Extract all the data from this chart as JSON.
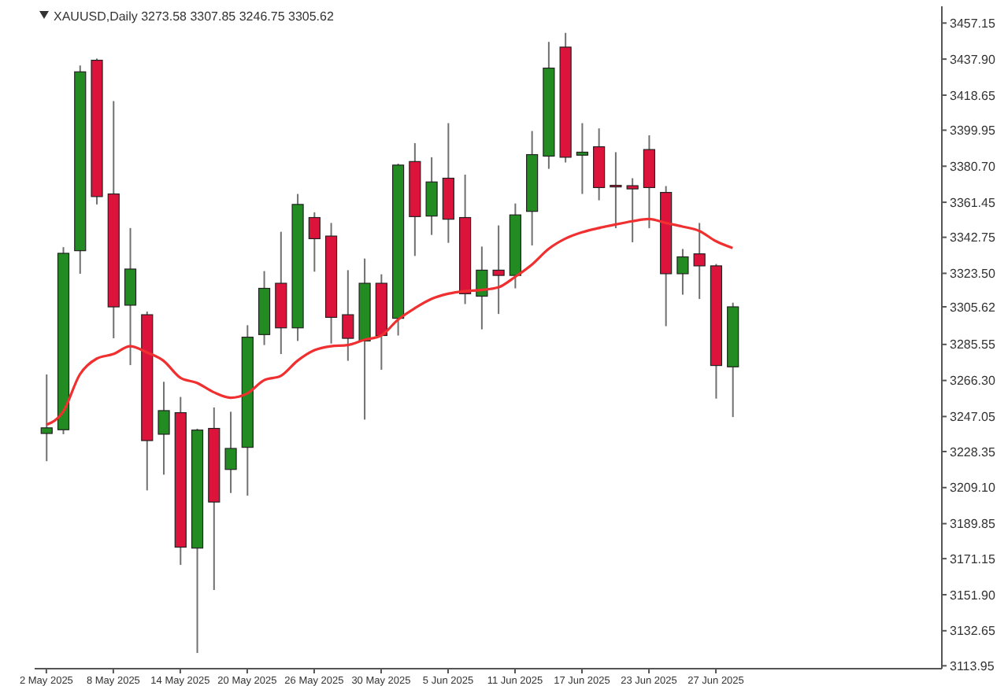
{
  "chart_data": {
    "type": "candlestick",
    "title": "XAUUSD,Daily  3273.58 3307.85 3246.75 3305.62",
    "categories": [
      "2 May 2025",
      null,
      null,
      null,
      "8 May 2025",
      null,
      null,
      null,
      "14 May 2025",
      null,
      null,
      null,
      "20 May 2025",
      null,
      null,
      null,
      "26 May 2025",
      null,
      null,
      null,
      "30 May 2025",
      null,
      null,
      null,
      "5 Jun 2025",
      null,
      null,
      null,
      "11 Jun 2025",
      null,
      null,
      null,
      "17 Jun 2025",
      null,
      null,
      null,
      "23 Jun 2025",
      null,
      null,
      null,
      "27 Jun 2025",
      null
    ],
    "ohlc": [
      [
        3238,
        3269.5,
        3223.2,
        3241
      ],
      [
        3240,
        3337.5,
        3237.6,
        3334.2
      ],
      [
        3335.6,
        3434.5,
        3323.3,
        3431.1
      ],
      [
        3437.3,
        3438.2,
        3360.3,
        3364.5
      ],
      [
        3365.9,
        3415.5,
        3288.8,
        3305.6
      ],
      [
        3306.5,
        3347.7,
        3274.5,
        3325.8
      ],
      [
        3301.4,
        3303.1,
        3207.6,
        3234.2
      ],
      [
        3237.6,
        3265.6,
        3216,
        3250.2
      ],
      [
        3249.1,
        3257.5,
        3167.8,
        3177.3
      ],
      [
        3176.8,
        3240.5,
        3120.8,
        3239.8
      ],
      [
        3240.7,
        3251.9,
        3154.4,
        3201.4
      ],
      [
        3218.8,
        3249.6,
        3206.2,
        3230
      ],
      [
        3230.6,
        3295.8,
        3204.8,
        3289.4
      ],
      [
        3290.8,
        3324.7,
        3285.2,
        3315.5
      ],
      [
        3318.2,
        3345.7,
        3280.4,
        3294.4
      ],
      [
        3294.4,
        3365.9,
        3287.4,
        3360.3
      ],
      [
        3353.3,
        3356.1,
        3324.4,
        3342
      ],
      [
        3343.4,
        3350.4,
        3286,
        3300
      ],
      [
        3301.4,
        3325.2,
        3276.8,
        3288.8
      ],
      [
        3287.4,
        3331.4,
        3245.4,
        3318.2
      ],
      [
        3318.2,
        3323,
        3272,
        3290.3
      ],
      [
        3299.5,
        3382.1,
        3290.3,
        3381.3
      ],
      [
        3383.2,
        3393,
        3332.8,
        3353.8
      ],
      [
        3354.1,
        3385.5,
        3344,
        3372.3
      ],
      [
        3374.3,
        3403.7,
        3339.8,
        3352.4
      ],
      [
        3353.3,
        3376.2,
        3307.1,
        3312.6
      ],
      [
        3311.3,
        3337.8,
        3293.6,
        3325.2
      ],
      [
        3325.2,
        3349.1,
        3301.8,
        3322.4
      ],
      [
        3322.4,
        3360.8,
        3315.5,
        3354.7
      ],
      [
        3356.6,
        3399.5,
        3338.4,
        3386.9
      ],
      [
        3386.1,
        3447.1,
        3379.3,
        3433.1
      ],
      [
        3444.3,
        3451.9,
        3382.7,
        3385.5
      ],
      [
        3386.6,
        3403.7,
        3365.9,
        3388.2
      ],
      [
        3391.1,
        3400.9,
        3362.5,
        3369.3
      ],
      [
        3370.5,
        3388.2,
        3347.6,
        3370.3
      ],
      [
        3370.3,
        3374.3,
        3340.1,
        3368.6
      ],
      [
        3389.6,
        3397.2,
        3347.6,
        3369.3
      ],
      [
        3366.7,
        3370.1,
        3295.3,
        3323.3
      ],
      [
        3323.3,
        3336.5,
        3312.1,
        3332.3
      ],
      [
        3333.9,
        3350.4,
        3309.8,
        3327.5
      ],
      [
        3327.5,
        3328.5,
        3256.6,
        3274.3
      ],
      [
        3273.58,
        3307.85,
        3246.75,
        3305.62
      ]
    ],
    "colors": [
      "#228b22",
      "#228b22",
      "#228b22",
      "#dc143c",
      "#dc143c",
      "#228b22",
      "#dc143c",
      "#228b22",
      "#dc143c",
      "#228b22",
      "#dc143c",
      "#228b22",
      "#228b22",
      "#228b22",
      "#dc143c",
      "#228b22",
      "#dc143c",
      "#dc143c",
      "#dc143c",
      "#228b22",
      "#dc143c",
      "#228b22",
      "#dc143c",
      "#228b22",
      "#dc143c",
      "#dc143c",
      "#228b22",
      "#dc143c",
      "#228b22",
      "#228b22",
      "#228b22",
      "#dc143c",
      "#228b22",
      "#dc143c",
      "#dc143c",
      "#dc143c",
      "#dc143c",
      "#dc143c",
      "#228b22",
      "#dc143c",
      "#dc143c",
      "#228b22"
    ],
    "series": [
      {
        "type": "line",
        "color": "#f03030",
        "values": [
          3242.6,
          3249.6,
          3269.5,
          3277.9,
          3280.4,
          3284.6,
          3281.3,
          3276.8,
          3267.8,
          3265,
          3260,
          3257.1,
          3259.4,
          3266.4,
          3268.7,
          3276.8,
          3282.4,
          3284.6,
          3285.2,
          3288,
          3290.3,
          3298.7,
          3304.8,
          3309.8,
          3312.6,
          3314,
          3314.6,
          3316,
          3321.6,
          3328.1,
          3336.5,
          3342,
          3345.4,
          3347.7,
          3349.6,
          3351.3,
          3352.5,
          3350.4,
          3348.5,
          3346.2,
          3340.7,
          3337
        ]
      }
    ],
    "marker": "none",
    "ylim": [
      3112.4,
      3466.1
    ],
    "yticks": [
      {
        "value": 3113.95,
        "label": "3113.95"
      },
      {
        "value": 3132.65,
        "label": "3132.65"
      },
      {
        "value": 3151.9,
        "label": "3151.90"
      },
      {
        "value": 3171.15,
        "label": "3171.15"
      },
      {
        "value": 3189.85,
        "label": "3189.85"
      },
      {
        "value": 3209.1,
        "label": "3209.10"
      },
      {
        "value": 3228.35,
        "label": "3228.35"
      },
      {
        "value": 3247.05,
        "label": "3247.05"
      },
      {
        "value": 3266.3,
        "label": "3266.30"
      },
      {
        "value": 3285.55,
        "label": "3285.55"
      },
      {
        "value": 3305.62,
        "label": "3305.62"
      },
      {
        "value": 3323.5,
        "label": "3323.50"
      },
      {
        "value": 3342.75,
        "label": "3342.75"
      },
      {
        "value": 3361.45,
        "label": "3361.45"
      },
      {
        "value": 3380.7,
        "label": "3380.70"
      },
      {
        "value": 3399.95,
        "label": "3399.95"
      },
      {
        "value": 3418.65,
        "label": "3418.65"
      },
      {
        "value": 3437.9,
        "label": "3437.90"
      },
      {
        "value": 3457.15,
        "label": "3457.15"
      }
    ],
    "grid": false
  }
}
